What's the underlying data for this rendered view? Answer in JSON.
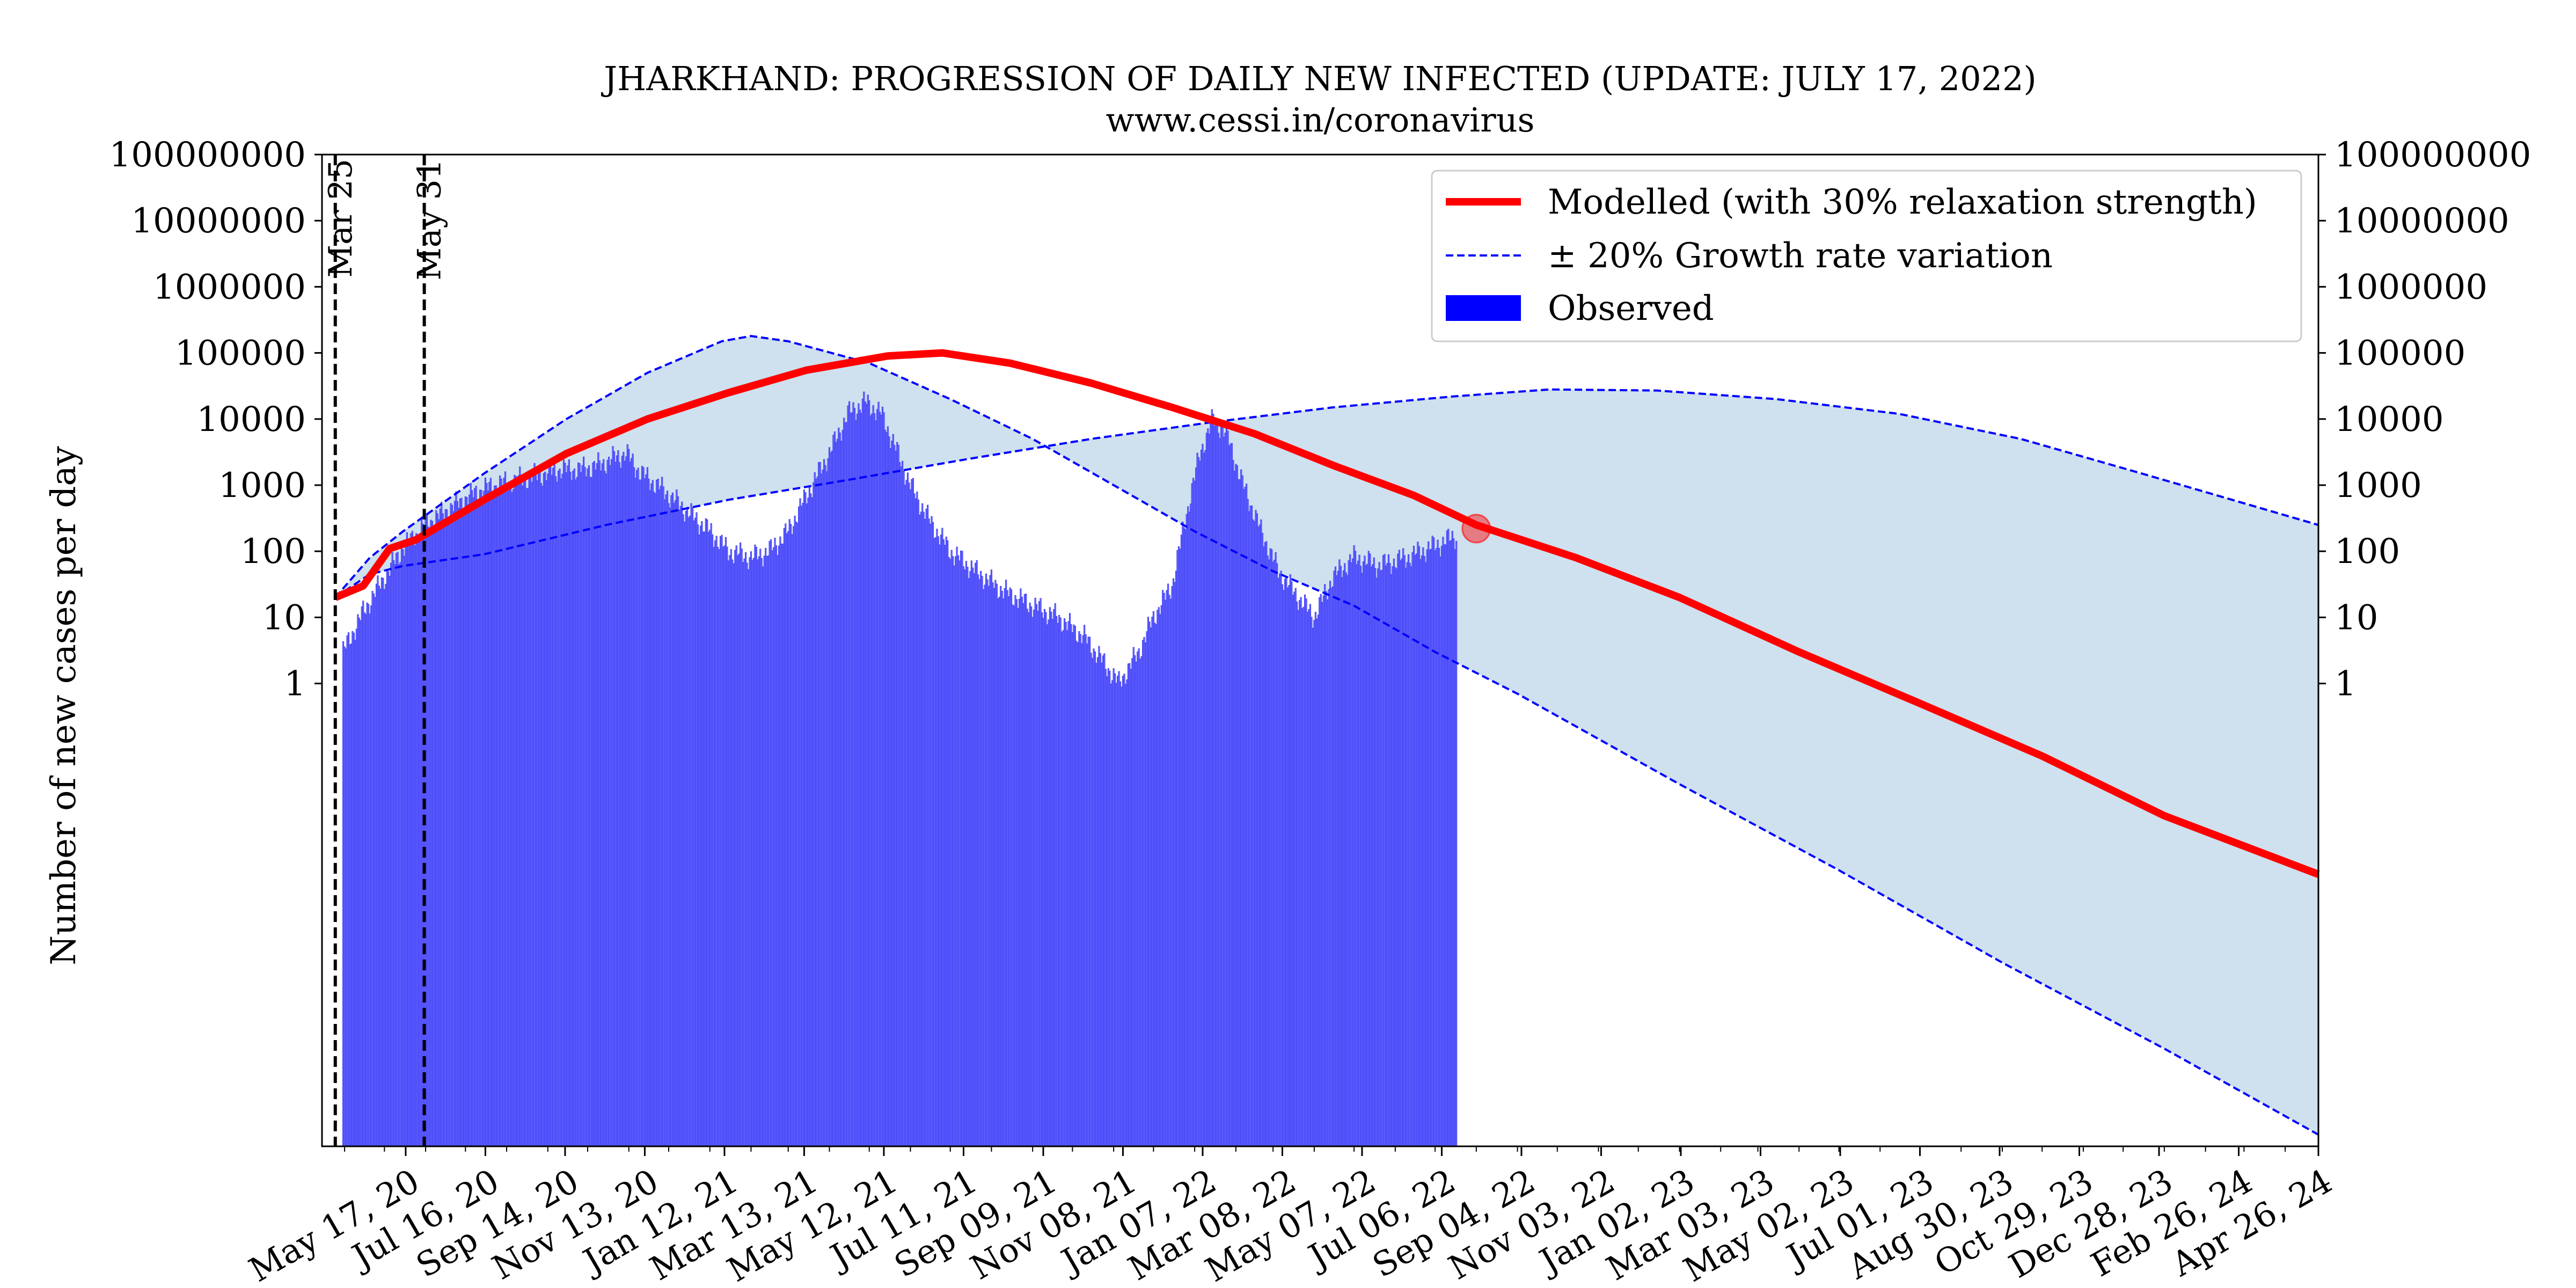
{
  "chart_data": {
    "type": "bar",
    "title": "JHARKHAND: PROGRESSION OF DAILY NEW INFECTED (UPDATE: JULY 17, 2022)",
    "subtitle": "www.cessi.in/coronavirus",
    "ylabel": "Number of new cases per day",
    "yscale": "log",
    "ylim": [
      1e-07,
      100000000
    ],
    "y_ticks": [
      "1",
      "10",
      "100",
      "1000",
      "10000",
      "100000",
      "1000000",
      "10000000",
      "100000000"
    ],
    "x_start": "2020-03-15",
    "x_end": "2024-04-26",
    "x_ticks": [
      "May 17, 20",
      "Jul 16, 20",
      "Sep 14, 20",
      "Nov 13, 20",
      "Jan 12, 21",
      "Mar 13, 21",
      "May 12, 21",
      "Jul 11, 21",
      "Sep 09, 21",
      "Nov 08, 21",
      "Jan 07, 22",
      "Mar 08, 22",
      "May 07, 22",
      "Jul 06, 22",
      "Sep 04, 22",
      "Nov 03, 22",
      "Jan 02, 23",
      "Mar 03, 23",
      "May 02, 23",
      "Jul 01, 23",
      "Aug 30, 23",
      "Oct 29, 23",
      "Dec 28, 23",
      "Feb 26, 24",
      "Apr 26, 24"
    ],
    "x_tick_dates": [
      "2020-05-17",
      "2020-07-16",
      "2020-09-14",
      "2020-11-13",
      "2021-01-12",
      "2021-03-13",
      "2021-05-12",
      "2021-07-11",
      "2021-09-09",
      "2021-11-08",
      "2022-01-07",
      "2022-03-08",
      "2022-05-07",
      "2022-07-06",
      "2022-09-04",
      "2022-11-03",
      "2023-01-02",
      "2023-03-03",
      "2023-05-02",
      "2023-07-01",
      "2023-08-30",
      "2023-10-29",
      "2023-12-28",
      "2024-02-26",
      "2024-04-26"
    ],
    "vlines": [
      {
        "date": "2020-03-25",
        "label": "Mar 25"
      },
      {
        "date": "2020-05-31",
        "label": "May 31"
      }
    ],
    "legend_position": "top-right",
    "legend": [
      {
        "label": "Modelled (with 30% relaxation strength)",
        "color": "#ff0000",
        "style": "solid"
      },
      {
        "label": "± 20% Growth rate variation",
        "color": "#0000ff",
        "style": "dashed"
      },
      {
        "label": "Observed",
        "color": "#0000ff",
        "style": "patch"
      }
    ],
    "series": [
      {
        "name": "Observed",
        "kind": "bars",
        "color": "#0000ff",
        "points": [
          [
            "2020-03-31",
            3
          ],
          [
            "2020-04-15",
            12
          ],
          [
            "2020-05-01",
            40
          ],
          [
            "2020-05-15",
            110
          ],
          [
            "2020-06-01",
            250
          ],
          [
            "2020-06-20",
            450
          ],
          [
            "2020-07-10",
            800
          ],
          [
            "2020-07-25",
            1000
          ],
          [
            "2020-08-10",
            1200
          ],
          [
            "2020-08-25",
            1400
          ],
          [
            "2020-09-10",
            1700
          ],
          [
            "2020-09-25",
            1700
          ],
          [
            "2020-10-10",
            2000
          ],
          [
            "2020-10-20",
            2500
          ],
          [
            "2020-10-30",
            3000
          ],
          [
            "2020-11-10",
            1500
          ],
          [
            "2020-11-25",
            900
          ],
          [
            "2020-12-15",
            400
          ],
          [
            "2021-01-01",
            200
          ],
          [
            "2021-01-15",
            100
          ],
          [
            "2021-02-01",
            80
          ],
          [
            "2021-02-15",
            100
          ],
          [
            "2021-03-01",
            200
          ],
          [
            "2021-03-15",
            700
          ],
          [
            "2021-04-01",
            3000
          ],
          [
            "2021-04-15",
            12000
          ],
          [
            "2021-04-28",
            18000
          ],
          [
            "2021-05-10",
            12000
          ],
          [
            "2021-05-20",
            4000
          ],
          [
            "2021-06-01",
            1000
          ],
          [
            "2021-06-15",
            300
          ],
          [
            "2021-07-01",
            100
          ],
          [
            "2021-07-20",
            50
          ],
          [
            "2021-08-10",
            25
          ],
          [
            "2021-09-01",
            15
          ],
          [
            "2021-09-20",
            10
          ],
          [
            "2021-10-10",
            5
          ],
          [
            "2021-10-25",
            2
          ],
          [
            "2021-11-05",
            1
          ],
          [
            "2021-11-20",
            3
          ],
          [
            "2021-12-01",
            10
          ],
          [
            "2021-12-15",
            30
          ],
          [
            "2021-12-25",
            300
          ],
          [
            "2022-01-05",
            3000
          ],
          [
            "2022-01-15",
            10000
          ],
          [
            "2022-01-25",
            6000
          ],
          [
            "2022-02-05",
            1200
          ],
          [
            "2022-02-20",
            200
          ],
          [
            "2022-03-05",
            50
          ],
          [
            "2022-03-20",
            20
          ],
          [
            "2022-04-01",
            10
          ],
          [
            "2022-04-15",
            40
          ],
          [
            "2022-05-01",
            80
          ],
          [
            "2022-05-20",
            60
          ],
          [
            "2022-06-10",
            80
          ],
          [
            "2022-07-01",
            120
          ],
          [
            "2022-07-17",
            170
          ]
        ]
      },
      {
        "name": "Modelled (with 30% relaxation strength)",
        "kind": "line",
        "color": "#ff0000",
        "points": [
          [
            "2020-03-25",
            20
          ],
          [
            "2020-04-15",
            30
          ],
          [
            "2020-05-05",
            110
          ],
          [
            "2020-05-25",
            150
          ],
          [
            "2020-07-15",
            600
          ],
          [
            "2020-09-15",
            3000
          ],
          [
            "2020-11-15",
            10000
          ],
          [
            "2021-01-15",
            25000
          ],
          [
            "2021-03-15",
            55000
          ],
          [
            "2021-05-15",
            90000
          ],
          [
            "2021-06-25",
            100000
          ],
          [
            "2021-08-15",
            70000
          ],
          [
            "2021-10-15",
            35000
          ],
          [
            "2021-12-15",
            15000
          ],
          [
            "2022-02-15",
            6000
          ],
          [
            "2022-04-15",
            2000
          ],
          [
            "2022-06-15",
            700
          ],
          [
            "2022-08-01",
            250
          ],
          [
            "2022-10-15",
            80
          ],
          [
            "2023-01-01",
            20
          ],
          [
            "2023-04-01",
            3
          ],
          [
            "2023-07-01",
            0.5
          ],
          [
            "2023-10-01",
            0.08
          ],
          [
            "2024-01-01",
            0.01
          ],
          [
            "2024-04-26",
            0.0013
          ]
        ]
      },
      {
        "name": "Growth rate variation upper",
        "kind": "dashed",
        "color": "#0000ff",
        "points": [
          [
            "2020-03-25",
            20
          ],
          [
            "2020-04-20",
            80
          ],
          [
            "2020-05-15",
            200
          ],
          [
            "2020-07-15",
            1500
          ],
          [
            "2020-09-15",
            10000
          ],
          [
            "2020-11-15",
            50000
          ],
          [
            "2021-01-10",
            150000
          ],
          [
            "2021-02-01",
            180000
          ],
          [
            "2021-03-01",
            150000
          ],
          [
            "2021-05-01",
            70000
          ],
          [
            "2021-07-01",
            20000
          ],
          [
            "2021-09-01",
            5000
          ],
          [
            "2021-11-01",
            1000
          ],
          [
            "2022-01-01",
            200
          ],
          [
            "2022-03-01",
            50
          ],
          [
            "2022-05-01",
            15
          ],
          [
            "2022-07-01",
            3
          ],
          [
            "2022-09-01",
            0.7
          ],
          [
            "2023-01-01",
            0.03
          ],
          [
            "2023-05-01",
            0.0015
          ],
          [
            "2023-09-01",
            6e-05
          ],
          [
            "2024-01-01",
            3e-06
          ],
          [
            "2024-04-26",
            1.5e-07
          ]
        ]
      },
      {
        "name": "Growth rate variation lower",
        "kind": "dashed",
        "color": "#0000ff",
        "points": [
          [
            "2020-03-25",
            20
          ],
          [
            "2020-04-20",
            45
          ],
          [
            "2020-05-15",
            60
          ],
          [
            "2020-07-15",
            90
          ],
          [
            "2020-10-15",
            250
          ],
          [
            "2021-01-15",
            600
          ],
          [
            "2021-04-15",
            1200
          ],
          [
            "2021-07-15",
            2500
          ],
          [
            "2021-10-15",
            5000
          ],
          [
            "2022-01-15",
            9000
          ],
          [
            "2022-04-15",
            15000
          ],
          [
            "2022-07-15",
            22000
          ],
          [
            "2022-09-25",
            28000
          ],
          [
            "2022-12-15",
            27000
          ],
          [
            "2023-03-15",
            20000
          ],
          [
            "2023-06-15",
            12000
          ],
          [
            "2023-09-15",
            5000
          ],
          [
            "2023-12-15",
            1500
          ],
          [
            "2024-04-26",
            250
          ]
        ]
      }
    ],
    "current_marker": {
      "date": "2022-08-01",
      "value": 220,
      "color": "#ff0000"
    }
  }
}
